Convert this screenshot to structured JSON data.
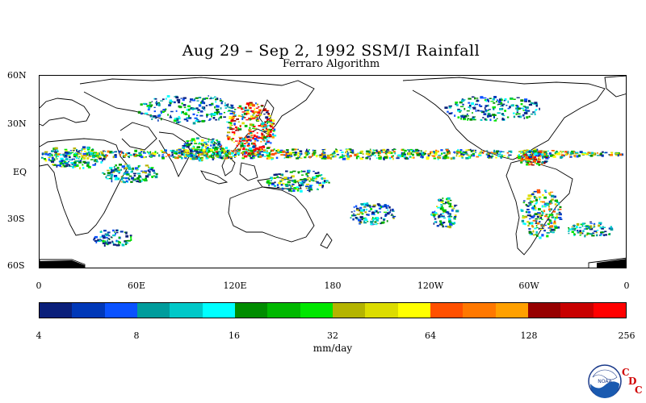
{
  "title": "Aug 29 – Sep 2, 1992 SSM/I Rainfall",
  "subtitle": "Ferraro Algorithm",
  "latitude_labels": [
    "60N",
    "30N",
    "EQ",
    "30S",
    "60S"
  ],
  "longitude_labels": [
    "0",
    "60E",
    "120E",
    "180",
    "120W",
    "60W",
    "0"
  ],
  "colorbar": {
    "colors": [
      "#0a1f7a",
      "#0038b8",
      "#0a52ff",
      "#009c9c",
      "#00c8c8",
      "#00ffff",
      "#008c00",
      "#00b800",
      "#00e600",
      "#b4b400",
      "#dcdc00",
      "#ffff00",
      "#ff5000",
      "#ff7800",
      "#ffa000",
      "#960000",
      "#c80000",
      "#ff0000"
    ],
    "tick_labels": [
      "4",
      "8",
      "16",
      "32",
      "64",
      "128",
      "256"
    ],
    "units": "mm/day"
  },
  "logo": {
    "name": "NOAA",
    "letters": [
      "C",
      "D",
      "C"
    ]
  }
}
